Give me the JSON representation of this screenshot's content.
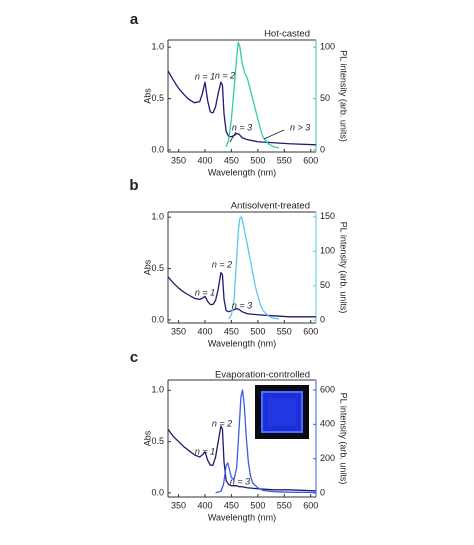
{
  "chart_data": [
    {
      "type": "line",
      "label": "a",
      "title": "Hot-casted",
      "xlabel": "Wavelength (nm)",
      "ylabel": "Abs",
      "y2label": "PL intensity (arb. units)",
      "xlim": [
        330,
        610
      ],
      "xticks": [
        350,
        400,
        450,
        500,
        550,
        600
      ],
      "ylim": [
        -0.02,
        1.07
      ],
      "yticks": [
        {
          "value": 0,
          "label": "0.0"
        },
        {
          "value": 0.5,
          "label": "0.5"
        },
        {
          "value": 1,
          "label": "1.0"
        }
      ],
      "y2lim": [
        -2,
        107
      ],
      "y2ticks": [
        0,
        50,
        100
      ],
      "y2color": "#2fcfa8",
      "annotations": [
        "n = 1",
        "n = 2",
        "n = 3",
        "n > 3"
      ],
      "series": [
        {
          "name": "Abs",
          "color": "#1e1b6e",
          "x": [
            330,
            340,
            350,
            360,
            370,
            380,
            390,
            395,
            400,
            405,
            410,
            415,
            420,
            425,
            430,
            433,
            436,
            440,
            445,
            450,
            455,
            460,
            465,
            470,
            480,
            500,
            530,
            560,
            610
          ],
          "values": [
            0.77,
            0.68,
            0.6,
            0.54,
            0.49,
            0.46,
            0.47,
            0.55,
            0.66,
            0.48,
            0.37,
            0.36,
            0.42,
            0.55,
            0.66,
            0.63,
            0.35,
            0.18,
            0.13,
            0.13,
            0.14,
            0.16,
            0.15,
            0.12,
            0.1,
            0.08,
            0.07,
            0.06,
            0.05
          ]
        },
        {
          "name": "PL",
          "color": "#2fcfa8",
          "axis": "y2",
          "x": [
            440,
            445,
            450,
            455,
            460,
            463,
            466,
            470,
            475,
            480,
            485,
            490,
            495,
            500,
            505,
            510,
            520,
            530,
            540
          ],
          "values": [
            3,
            10,
            30,
            60,
            90,
            105,
            100,
            85,
            75,
            70,
            60,
            50,
            40,
            30,
            20,
            12,
            6,
            3,
            2
          ]
        }
      ]
    },
    {
      "type": "line",
      "label": "b",
      "title": "Antisolvent-treated",
      "xlabel": "Wavelength (nm)",
      "ylabel": "Abs",
      "y2label": "PL intensity (arb. units)",
      "xlim": [
        330,
        610
      ],
      "xticks": [
        350,
        400,
        450,
        500,
        550,
        600
      ],
      "ylim": [
        -0.03,
        1.05
      ],
      "yticks": [
        {
          "value": 0,
          "label": "0.0"
        },
        {
          "value": 0.5,
          "label": "0.5"
        },
        {
          "value": 1,
          "label": "1.0"
        }
      ],
      "y2lim": [
        -4,
        157
      ],
      "y2ticks": [
        0,
        50,
        100,
        150
      ],
      "y2color": "#5bc8f0",
      "annotations": [
        "n = 1",
        "n = 2",
        "n = 3"
      ],
      "series": [
        {
          "name": "Abs",
          "color": "#1e1b6e",
          "x": [
            330,
            340,
            350,
            360,
            370,
            380,
            390,
            395,
            400,
            405,
            410,
            415,
            420,
            425,
            430,
            433,
            436,
            440,
            445,
            450,
            455,
            460,
            465,
            470,
            480,
            500,
            530,
            560,
            610
          ],
          "values": [
            0.42,
            0.36,
            0.31,
            0.27,
            0.24,
            0.21,
            0.2,
            0.21,
            0.23,
            0.18,
            0.15,
            0.15,
            0.19,
            0.3,
            0.46,
            0.44,
            0.2,
            0.09,
            0.08,
            0.09,
            0.1,
            0.11,
            0.1,
            0.08,
            0.06,
            0.05,
            0.04,
            0.03,
            0.03
          ]
        },
        {
          "name": "PL",
          "color": "#5bc8f0",
          "axis": "y2",
          "x": [
            445,
            450,
            455,
            460,
            463,
            466,
            469,
            472,
            476,
            480,
            485,
            490,
            495,
            500,
            505,
            510,
            520,
            530,
            540
          ],
          "values": [
            2,
            8,
            30,
            90,
            130,
            148,
            150,
            140,
            125,
            110,
            90,
            70,
            50,
            35,
            22,
            14,
            6,
            3,
            2
          ]
        }
      ]
    },
    {
      "type": "line",
      "label": "c",
      "title": "Evaporation-controlled",
      "xlabel": "Wavelength (nm)",
      "ylabel": "Abs",
      "y2label": "PL intensity (arb. units)",
      "xlim": [
        330,
        610
      ],
      "xticks": [
        350,
        400,
        450,
        500,
        550,
        600
      ],
      "ylim": [
        -0.04,
        1.1
      ],
      "yticks": [
        {
          "value": 0,
          "label": "0.0"
        },
        {
          "value": 0.5,
          "label": "0.5"
        },
        {
          "value": 1,
          "label": "1.0"
        }
      ],
      "y2lim": [
        -23,
        658
      ],
      "y2ticks": [
        0,
        200,
        400,
        600
      ],
      "y2color": "#3d5ce8",
      "annotations": [
        "n = 1",
        "n = 2",
        "n = 3"
      ],
      "series": [
        {
          "name": "Abs",
          "color": "#1e1b6e",
          "x": [
            330,
            340,
            350,
            360,
            370,
            380,
            390,
            395,
            400,
            405,
            410,
            415,
            420,
            425,
            430,
            433,
            436,
            440,
            445,
            450,
            455,
            460,
            465,
            470,
            480,
            500,
            530,
            560,
            610
          ],
          "values": [
            0.62,
            0.55,
            0.5,
            0.45,
            0.41,
            0.37,
            0.35,
            0.37,
            0.4,
            0.32,
            0.27,
            0.27,
            0.35,
            0.5,
            0.65,
            0.62,
            0.3,
            0.12,
            0.08,
            0.07,
            0.07,
            0.07,
            0.06,
            0.06,
            0.05,
            0.04,
            0.03,
            0.03,
            0.02
          ]
        },
        {
          "name": "PL",
          "color": "#3d5ce8",
          "axis": "y2",
          "x": [
            420,
            430,
            435,
            440,
            443,
            446,
            450,
            455,
            460,
            464,
            468,
            471,
            474,
            478,
            482,
            486,
            490,
            500,
            510,
            530,
            560,
            610
          ],
          "values": [
            2,
            10,
            50,
            160,
            175,
            140,
            90,
            80,
            150,
            350,
            560,
            600,
            520,
            330,
            180,
            100,
            60,
            30,
            15,
            8,
            5,
            3
          ]
        }
      ]
    }
  ]
}
